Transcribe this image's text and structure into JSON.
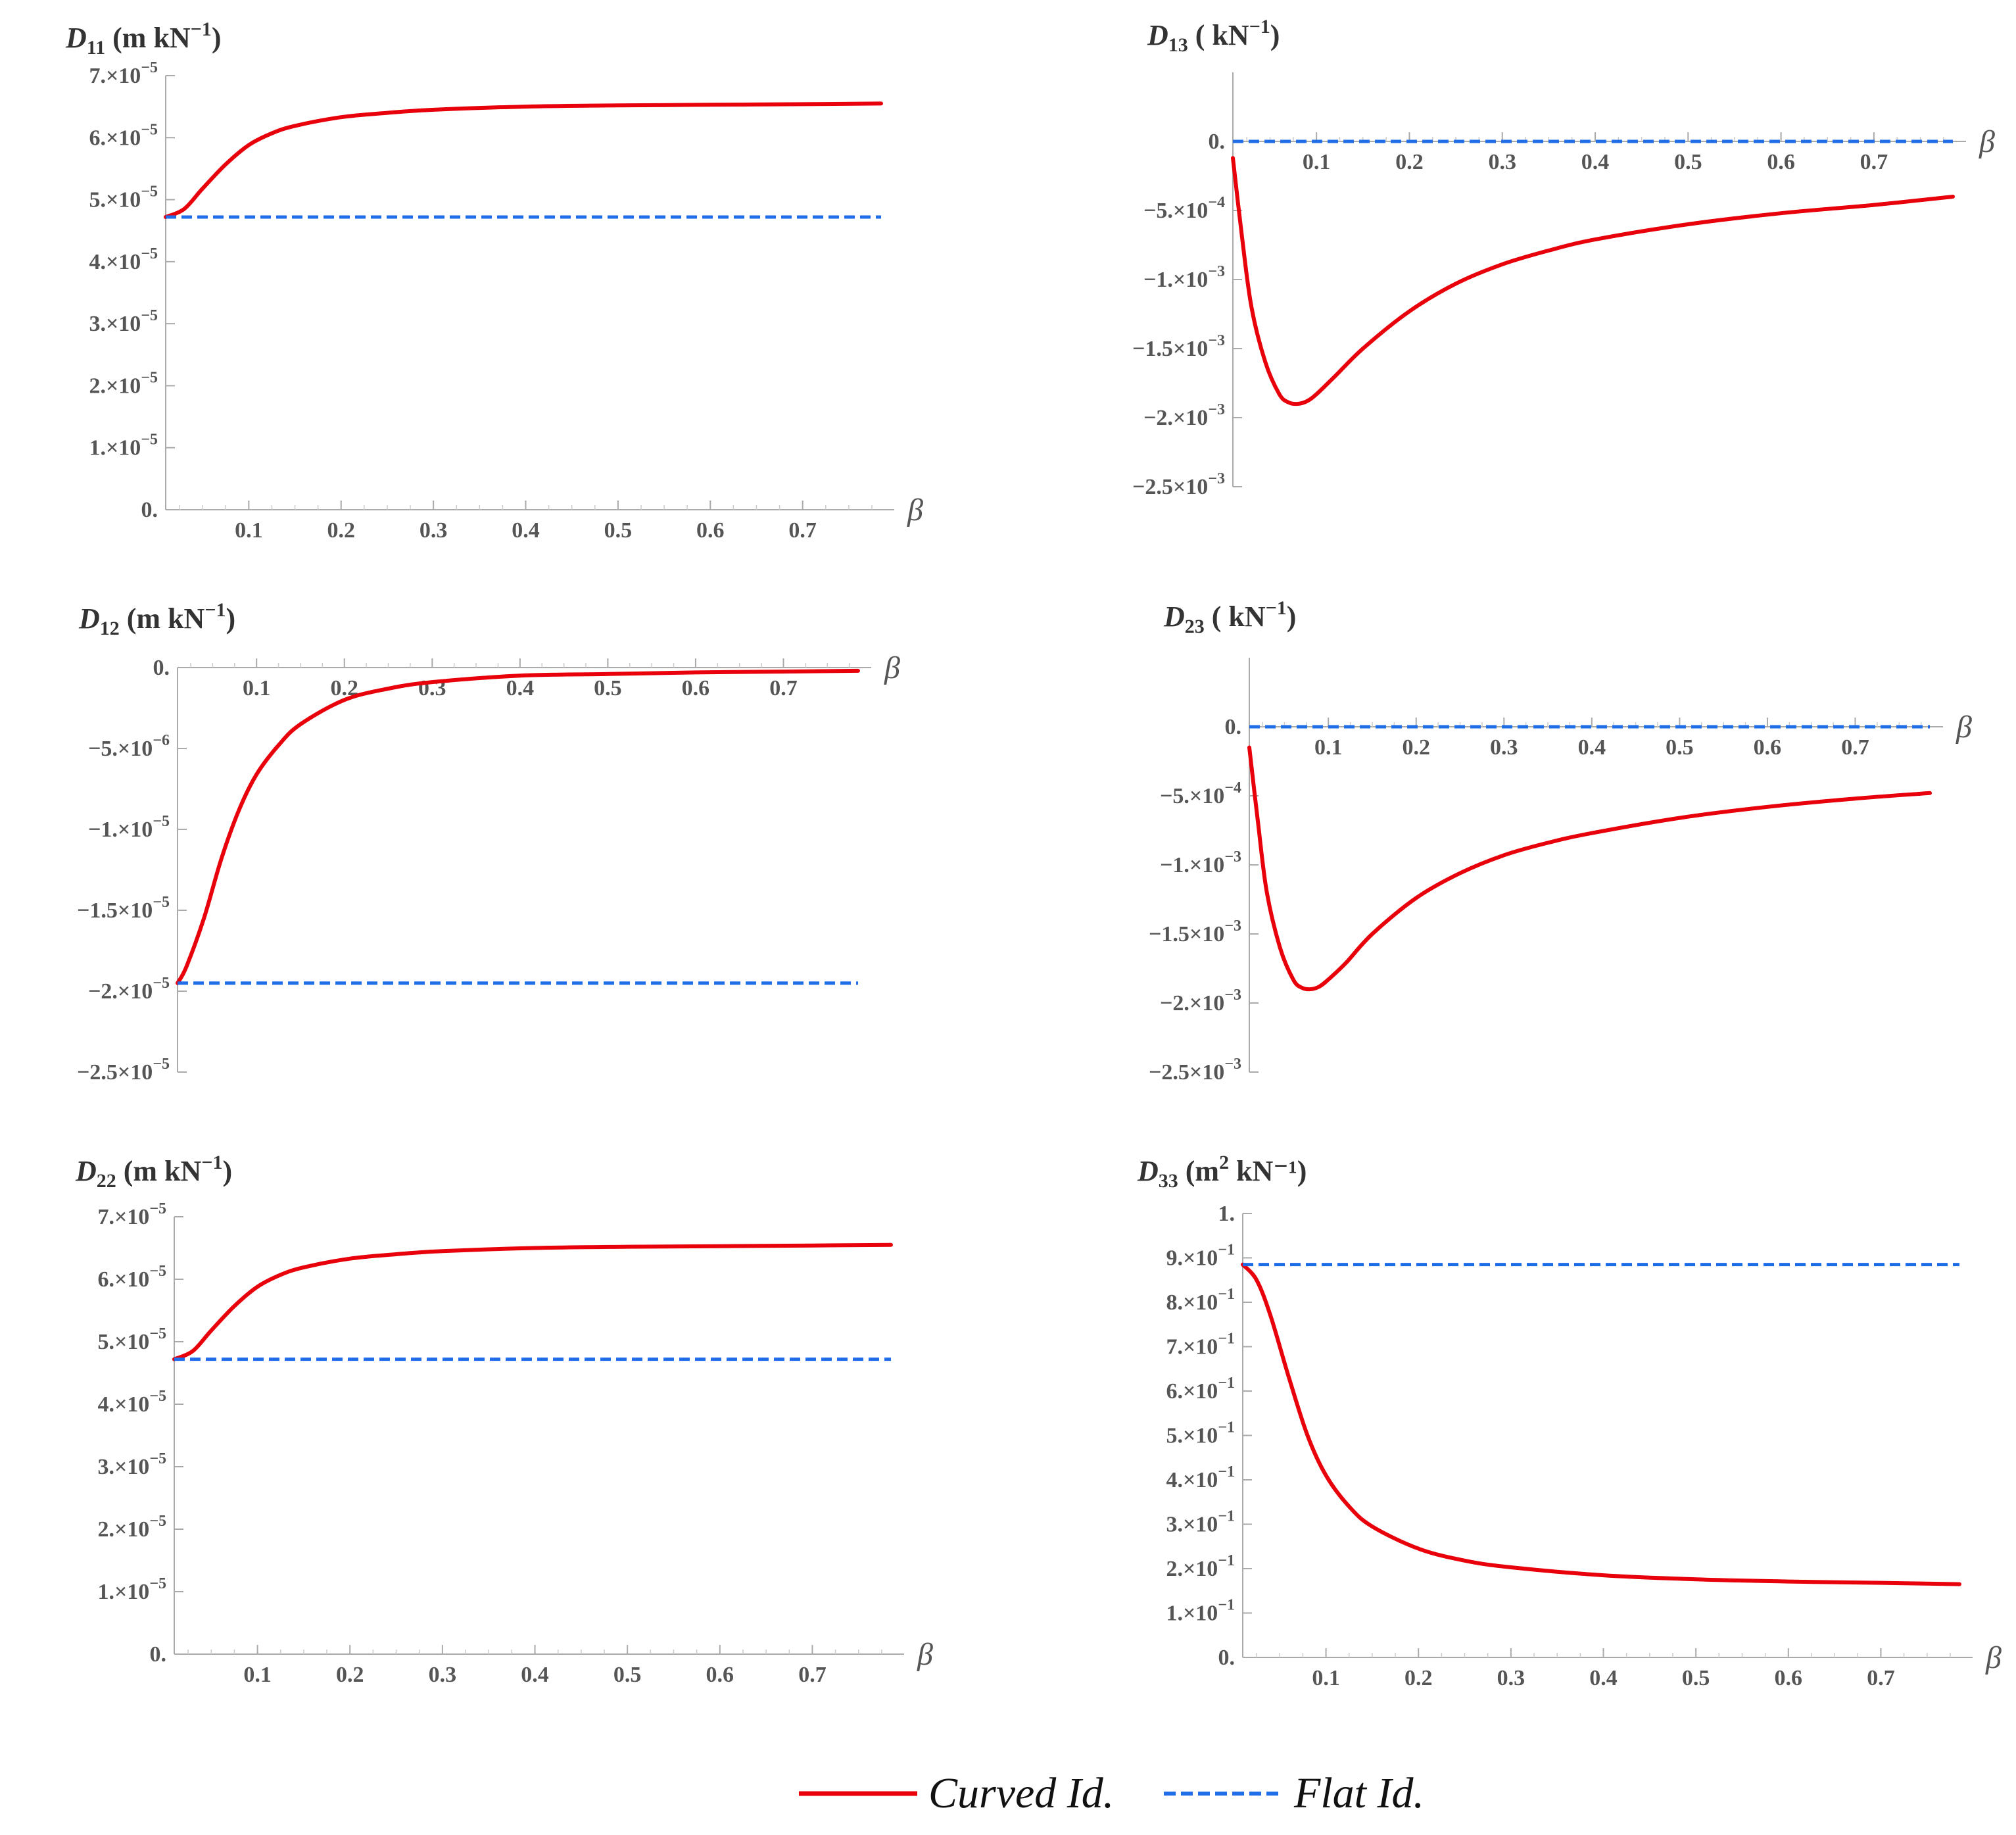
{
  "chart_data": [
    {
      "type": "line",
      "id": "D11",
      "ylabel": {
        "symbol": "D",
        "sub": "11",
        "unit_pre": "(m kN",
        "unit_sup": "−1",
        "unit_post": ")"
      },
      "xlabel": "β",
      "xlim": [
        0.01,
        0.785
      ],
      "xticks": [
        0.1,
        0.2,
        0.3,
        0.4,
        0.5,
        0.6,
        0.7
      ],
      "xtick_labels": [
        "0.1",
        "0.2",
        "0.3",
        "0.4",
        "0.5",
        "0.6",
        "0.7"
      ],
      "ylim": [
        0,
        7e-05
      ],
      "yticks": [
        {
          "value": 0,
          "mant": "0.",
          "exp": ""
        },
        {
          "value": 1e-05,
          "mant": "1.×10",
          "exp": "−5"
        },
        {
          "value": 2e-05,
          "mant": "2.×10",
          "exp": "−5"
        },
        {
          "value": 3e-05,
          "mant": "3.×10",
          "exp": "−5"
        },
        {
          "value": 4e-05,
          "mant": "4.×10",
          "exp": "−5"
        },
        {
          "value": 5e-05,
          "mant": "5.×10",
          "exp": "−5"
        },
        {
          "value": 6e-05,
          "mant": "6.×10",
          "exp": "−5"
        },
        {
          "value": 7e-05,
          "mant": "7.×10",
          "exp": "−5"
        }
      ],
      "series": [
        {
          "name": "Curved Id.",
          "color": "#e8000b",
          "style": "solid",
          "x": [
            0.01,
            0.03,
            0.05,
            0.075,
            0.1,
            0.125,
            0.15,
            0.2,
            0.25,
            0.3,
            0.4,
            0.5,
            0.6,
            0.7,
            0.785
          ],
          "y": [
            4.72e-05,
            4.85e-05,
            5.18e-05,
            5.57e-05,
            5.88e-05,
            6.07e-05,
            6.19e-05,
            6.33e-05,
            6.4e-05,
            6.45e-05,
            6.5e-05,
            6.52e-05,
            6.53e-05,
            6.54e-05,
            6.55e-05
          ]
        },
        {
          "name": "Flat Id.",
          "color": "#1f6ee8",
          "style": "dashed",
          "x": [
            0.01,
            0.785
          ],
          "y": [
            4.72e-05,
            4.72e-05
          ]
        }
      ]
    },
    {
      "type": "line",
      "id": "D13",
      "ylabel": {
        "symbol": "D",
        "sub": "13",
        "unit_pre": "( kN",
        "unit_sup": "−1",
        "unit_post": ")"
      },
      "xlabel": "β",
      "xlim": [
        0.01,
        0.785
      ],
      "xticks": [
        0.1,
        0.2,
        0.3,
        0.4,
        0.5,
        0.6,
        0.7
      ],
      "xtick_labels": [
        "0.1",
        "0.2",
        "0.3",
        "0.4",
        "0.5",
        "0.6",
        "0.7"
      ],
      "ylim": [
        -0.0025,
        0.0005
      ],
      "yticks": [
        {
          "value": 0,
          "mant": "0.",
          "exp": ""
        },
        {
          "value": -0.0005,
          "mant": "−5.×10",
          "exp": "−4"
        },
        {
          "value": -0.001,
          "mant": "−1.×10",
          "exp": "−3"
        },
        {
          "value": -0.0015,
          "mant": "−1.5×10",
          "exp": "−3"
        },
        {
          "value": -0.002,
          "mant": "−2.×10",
          "exp": "−3"
        },
        {
          "value": -0.0025,
          "mant": "−2.5×10",
          "exp": "−3"
        }
      ],
      "series": [
        {
          "name": "Curved Id.",
          "color": "#e8000b",
          "style": "solid",
          "x": [
            0.01,
            0.02,
            0.03,
            0.045,
            0.06,
            0.07,
            0.08,
            0.09,
            0.1,
            0.12,
            0.15,
            0.2,
            0.25,
            0.3,
            0.35,
            0.4,
            0.5,
            0.6,
            0.7,
            0.785
          ],
          "y": [
            -0.00012,
            -0.0007,
            -0.0012,
            -0.0016,
            -0.00183,
            -0.00189,
            -0.0019,
            -0.00188,
            -0.00183,
            -0.0017,
            -0.0015,
            -0.00123,
            -0.00103,
            -0.00089,
            -0.00079,
            -0.00071,
            -0.0006,
            -0.00052,
            -0.00046,
            -0.0004
          ]
        },
        {
          "name": "Flat Id.",
          "color": "#1f6ee8",
          "style": "dashed",
          "x": [
            0.01,
            0.785
          ],
          "y": [
            0,
            0
          ]
        }
      ]
    },
    {
      "type": "line",
      "id": "D12",
      "ylabel": {
        "symbol": "D",
        "sub": "12",
        "unit_pre": "(m kN",
        "unit_sup": "−1",
        "unit_post": ")"
      },
      "xlabel": "β",
      "xlim": [
        0.01,
        0.785
      ],
      "xticks": [
        0.1,
        0.2,
        0.3,
        0.4,
        0.5,
        0.6,
        0.7
      ],
      "xtick_labels": [
        "0.1",
        "0.2",
        "0.3",
        "0.4",
        "0.5",
        "0.6",
        "0.7"
      ],
      "ylim": [
        -2.5e-05,
        0
      ],
      "yticks": [
        {
          "value": 0,
          "mant": "0.",
          "exp": ""
        },
        {
          "value": -5e-06,
          "mant": "−5.×10",
          "exp": "−6"
        },
        {
          "value": -1e-05,
          "mant": "−1.×10",
          "exp": "−5"
        },
        {
          "value": -1.5e-05,
          "mant": "−1.5×10",
          "exp": "−5"
        },
        {
          "value": -2e-05,
          "mant": "−2.×10",
          "exp": "−5"
        },
        {
          "value": -2.5e-05,
          "mant": "−2.5×10",
          "exp": "−5"
        }
      ],
      "series": [
        {
          "name": "Curved Id.",
          "color": "#e8000b",
          "style": "solid",
          "x": [
            0.01,
            0.02,
            0.04,
            0.06,
            0.08,
            0.1,
            0.125,
            0.15,
            0.2,
            0.25,
            0.3,
            0.4,
            0.5,
            0.6,
            0.7,
            0.785
          ],
          "y": [
            -1.95e-05,
            -1.85e-05,
            -1.55e-05,
            -1.18e-05,
            -8.8e-06,
            -6.6e-06,
            -4.8e-06,
            -3.5e-06,
            -2e-06,
            -1.3e-06,
            -9e-07,
            -5e-07,
            -4e-07,
            -3e-07,
            -2.5e-07,
            -2e-07
          ]
        },
        {
          "name": "Flat Id.",
          "color": "#1f6ee8",
          "style": "dashed",
          "x": [
            0.01,
            0.785
          ],
          "y": [
            -1.95e-05,
            -1.95e-05
          ]
        }
      ]
    },
    {
      "type": "line",
      "id": "D23",
      "ylabel": {
        "symbol": "D",
        "sub": "23",
        "unit_pre": "( kN",
        "unit_sup": "−1",
        "unit_post": ")"
      },
      "xlabel": "β",
      "xlim": [
        0.01,
        0.785
      ],
      "xticks": [
        0.1,
        0.2,
        0.3,
        0.4,
        0.5,
        0.6,
        0.7
      ],
      "xtick_labels": [
        "0.1",
        "0.2",
        "0.3",
        "0.4",
        "0.5",
        "0.6",
        "0.7"
      ],
      "ylim": [
        -0.0025,
        0.0005
      ],
      "yticks": [
        {
          "value": 0,
          "mant": "0.",
          "exp": ""
        },
        {
          "value": -0.0005,
          "mant": "−5.×10",
          "exp": "−4"
        },
        {
          "value": -0.001,
          "mant": "−1.×10",
          "exp": "−3"
        },
        {
          "value": -0.0015,
          "mant": "−1.5×10",
          "exp": "−3"
        },
        {
          "value": -0.002,
          "mant": "−2.×10",
          "exp": "−3"
        },
        {
          "value": -0.0025,
          "mant": "−2.5×10",
          "exp": "−3"
        }
      ],
      "series": [
        {
          "name": "Curved Id.",
          "color": "#e8000b",
          "style": "solid",
          "x": [
            0.01,
            0.02,
            0.03,
            0.045,
            0.06,
            0.07,
            0.08,
            0.09,
            0.1,
            0.12,
            0.15,
            0.2,
            0.25,
            0.3,
            0.35,
            0.4,
            0.5,
            0.6,
            0.7,
            0.785
          ],
          "y": [
            -0.00015,
            -0.0007,
            -0.0012,
            -0.0016,
            -0.00183,
            -0.00189,
            -0.0019,
            -0.00188,
            -0.00183,
            -0.00171,
            -0.0015,
            -0.00124,
            -0.00106,
            -0.00093,
            -0.00084,
            -0.00077,
            -0.00066,
            -0.00058,
            -0.00052,
            -0.00048
          ]
        },
        {
          "name": "Flat Id.",
          "color": "#1f6ee8",
          "style": "dashed",
          "x": [
            0.01,
            0.785
          ],
          "y": [
            0,
            0
          ]
        }
      ]
    },
    {
      "type": "line",
      "id": "D22",
      "ylabel": {
        "symbol": "D",
        "sub": "22",
        "unit_pre": "(m kN",
        "unit_sup": "−1",
        "unit_post": ")"
      },
      "xlabel": "β",
      "xlim": [
        0.01,
        0.785
      ],
      "xticks": [
        0.1,
        0.2,
        0.3,
        0.4,
        0.5,
        0.6,
        0.7
      ],
      "xtick_labels": [
        "0.1",
        "0.2",
        "0.3",
        "0.4",
        "0.5",
        "0.6",
        "0.7"
      ],
      "ylim": [
        0,
        7e-05
      ],
      "yticks": [
        {
          "value": 0,
          "mant": "0.",
          "exp": ""
        },
        {
          "value": 1e-05,
          "mant": "1.×10",
          "exp": "−5"
        },
        {
          "value": 2e-05,
          "mant": "2.×10",
          "exp": "−5"
        },
        {
          "value": 3e-05,
          "mant": "3.×10",
          "exp": "−5"
        },
        {
          "value": 4e-05,
          "mant": "4.×10",
          "exp": "−5"
        },
        {
          "value": 5e-05,
          "mant": "5.×10",
          "exp": "−5"
        },
        {
          "value": 6e-05,
          "mant": "6.×10",
          "exp": "−5"
        },
        {
          "value": 7e-05,
          "mant": "7.×10",
          "exp": "−5"
        }
      ],
      "series": [
        {
          "name": "Curved Id.",
          "color": "#e8000b",
          "style": "solid",
          "x": [
            0.01,
            0.03,
            0.05,
            0.075,
            0.1,
            0.125,
            0.15,
            0.2,
            0.25,
            0.3,
            0.4,
            0.5,
            0.6,
            0.7,
            0.785
          ],
          "y": [
            4.72e-05,
            4.85e-05,
            5.18e-05,
            5.57e-05,
            5.88e-05,
            6.07e-05,
            6.19e-05,
            6.33e-05,
            6.4e-05,
            6.45e-05,
            6.5e-05,
            6.52e-05,
            6.53e-05,
            6.54e-05,
            6.55e-05
          ]
        },
        {
          "name": "Flat Id.",
          "color": "#1f6ee8",
          "style": "dashed",
          "x": [
            0.01,
            0.785
          ],
          "y": [
            4.72e-05,
            4.72e-05
          ]
        }
      ]
    },
    {
      "type": "line",
      "id": "D33",
      "ylabel": {
        "symbol": "D",
        "sub": "33",
        "unit_pre": "(m",
        "unit_sup": "2",
        "unit_post": " kN⁻¹)"
      },
      "xlabel": "β",
      "xlim": [
        0.01,
        0.785
      ],
      "xticks": [
        0.1,
        0.2,
        0.3,
        0.4,
        0.5,
        0.6,
        0.7
      ],
      "xtick_labels": [
        "0.1",
        "0.2",
        "0.3",
        "0.4",
        "0.5",
        "0.6",
        "0.7"
      ],
      "ylim": [
        0,
        1
      ],
      "yticks": [
        {
          "value": 0,
          "mant": "0.",
          "exp": ""
        },
        {
          "value": 0.1,
          "mant": "1.×10",
          "exp": "−1"
        },
        {
          "value": 0.2,
          "mant": "2.×10",
          "exp": "−1"
        },
        {
          "value": 0.3,
          "mant": "3.×10",
          "exp": "−1"
        },
        {
          "value": 0.4,
          "mant": "4.×10",
          "exp": "−1"
        },
        {
          "value": 0.5,
          "mant": "5.×10",
          "exp": "−1"
        },
        {
          "value": 0.6,
          "mant": "6.×10",
          "exp": "−1"
        },
        {
          "value": 0.7,
          "mant": "7.×10",
          "exp": "−1"
        },
        {
          "value": 0.8,
          "mant": "8.×10",
          "exp": "−1"
        },
        {
          "value": 0.9,
          "mant": "9.×10",
          "exp": "−1"
        },
        {
          "value": 1,
          "mant": "1.",
          "exp": ""
        }
      ],
      "series": [
        {
          "name": "Curved Id.",
          "color": "#e8000b",
          "style": "solid",
          "x": [
            0.01,
            0.025,
            0.04,
            0.06,
            0.08,
            0.1,
            0.125,
            0.15,
            0.2,
            0.25,
            0.3,
            0.4,
            0.5,
            0.6,
            0.7,
            0.785
          ],
          "y": [
            0.885,
            0.85,
            0.77,
            0.63,
            0.5,
            0.41,
            0.34,
            0.295,
            0.245,
            0.218,
            0.203,
            0.185,
            0.176,
            0.171,
            0.168,
            0.165
          ]
        },
        {
          "name": "Flat Id.",
          "color": "#1f6ee8",
          "style": "dashed",
          "x": [
            0.01,
            0.785
          ],
          "y": [
            0.885,
            0.885
          ]
        }
      ]
    }
  ],
  "legend": {
    "items": [
      {
        "label": "Curved Id.",
        "color": "#e8000b",
        "style": "solid"
      },
      {
        "label": "Flat Id.",
        "color": "#1f6ee8",
        "style": "dashed"
      }
    ]
  }
}
